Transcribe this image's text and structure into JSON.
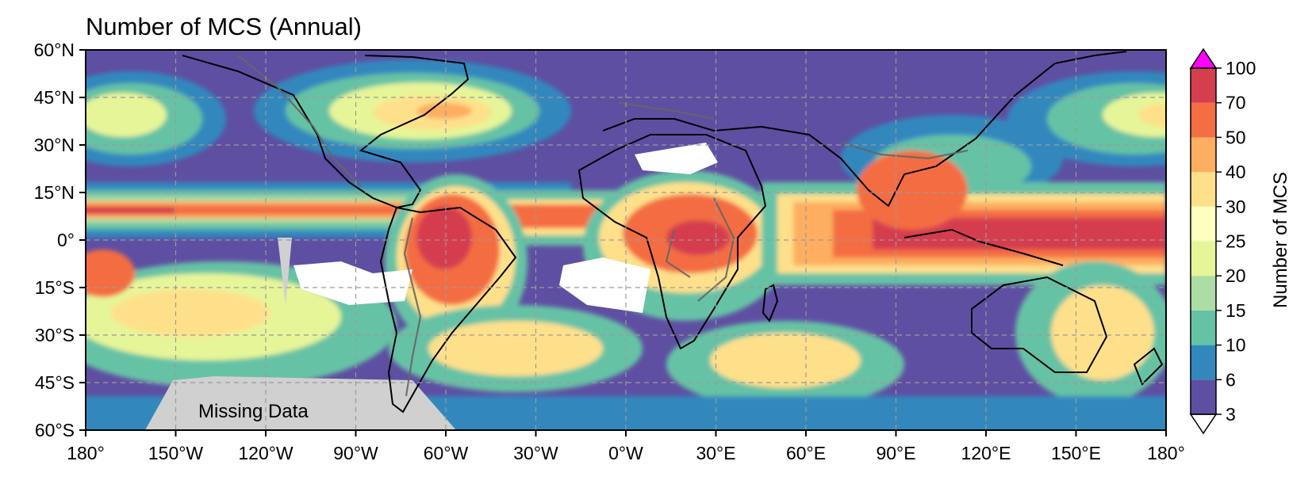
{
  "title": "Number of MCS (Annual)",
  "map": {
    "projection": "Plate Carree",
    "lon_range": [
      -180,
      180
    ],
    "lat_range": [
      -60,
      60
    ],
    "grid": true,
    "missing_label": "Missing Data",
    "missing_color": "#d0d0d0",
    "coastline_color": "#000000",
    "topography_contour_color": "#666666"
  },
  "axes": {
    "x_ticks": [
      "180°",
      "150°W",
      "120°W",
      "90°W",
      "60°W",
      "30°W",
      "0°W",
      "30°E",
      "60°E",
      "90°E",
      "120°E",
      "150°E",
      "180°"
    ],
    "x_tick_values": [
      -180,
      -150,
      -120,
      -90,
      -60,
      -30,
      0,
      30,
      60,
      90,
      120,
      150,
      180
    ],
    "y_ticks": [
      "60°N",
      "45°N",
      "30°N",
      "15°N",
      "0°",
      "15°S",
      "30°S",
      "45°S",
      "60°S"
    ],
    "y_tick_values": [
      60,
      45,
      30,
      15,
      0,
      -15,
      -30,
      -45,
      -60
    ]
  },
  "colorbar": {
    "label": "Number of MCS",
    "levels": [
      "3",
      "6",
      "10",
      "15",
      "20",
      "25",
      "30",
      "40",
      "50",
      "70",
      "100"
    ],
    "colors": [
      "#5e4fa2",
      "#3288bd",
      "#66c2a5",
      "#abdda4",
      "#e6f598",
      "#ffffbf",
      "#fee08b",
      "#fdae61",
      "#f46d43",
      "#d53e4f"
    ],
    "extend_max_color": "#ff00ff",
    "extend_min_color": "#ffffff"
  }
}
